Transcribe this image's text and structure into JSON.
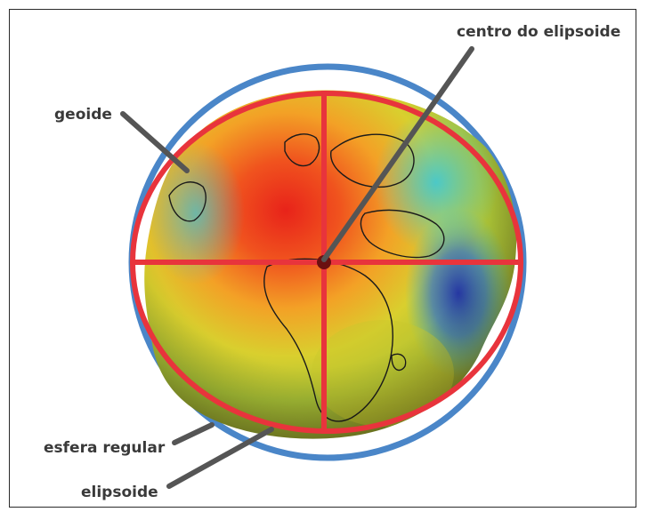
{
  "labels": {
    "center": "centro do elipsoide",
    "geoid": "geoide",
    "sphere": "esfera regular",
    "ellipsoid": "elipsoide"
  },
  "colors": {
    "sphere_outline": "#4a86c8",
    "ellipsoid_outline": "#e8343c",
    "leader_line": "#555555",
    "label_text": "#3a3a3a"
  }
}
